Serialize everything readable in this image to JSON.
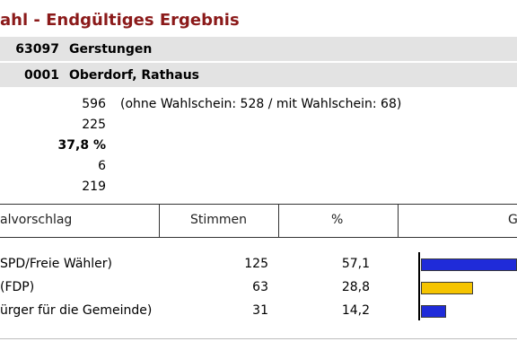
{
  "title": "ahl - Endgültiges Ergebnis",
  "municipality": {
    "number": "63097",
    "name": "Gerstungen"
  },
  "district": {
    "number": "0001",
    "name": "Oberdorf, Rathaus"
  },
  "stats": {
    "eligible": "596",
    "eligible_note": "(ohne Wahlschein: 528 / mit Wahlschein: 68)",
    "voters": "225",
    "turnout": "37,8 %",
    "invalid": "6",
    "valid": "219"
  },
  "table": {
    "headers": [
      "alvorschlag",
      "Stimmen",
      "%",
      "G"
    ],
    "rows": [
      {
        "party": "SPD/Freie Wähler)",
        "votes": "125",
        "percent": "57,1",
        "share": 57.1,
        "color": "#1f2bd9"
      },
      {
        "party": "(FDP)",
        "votes": "63",
        "percent": "28,8",
        "share": 28.8,
        "color": "#f5c400"
      },
      {
        "party": "ürger für die Gemeinde)",
        "votes": "31",
        "percent": "14,2",
        "share": 14.2,
        "color": "#1f2bd9"
      }
    ]
  },
  "colors": {
    "title": "#8b1a1a",
    "header_bg": "#e3e3e3"
  }
}
